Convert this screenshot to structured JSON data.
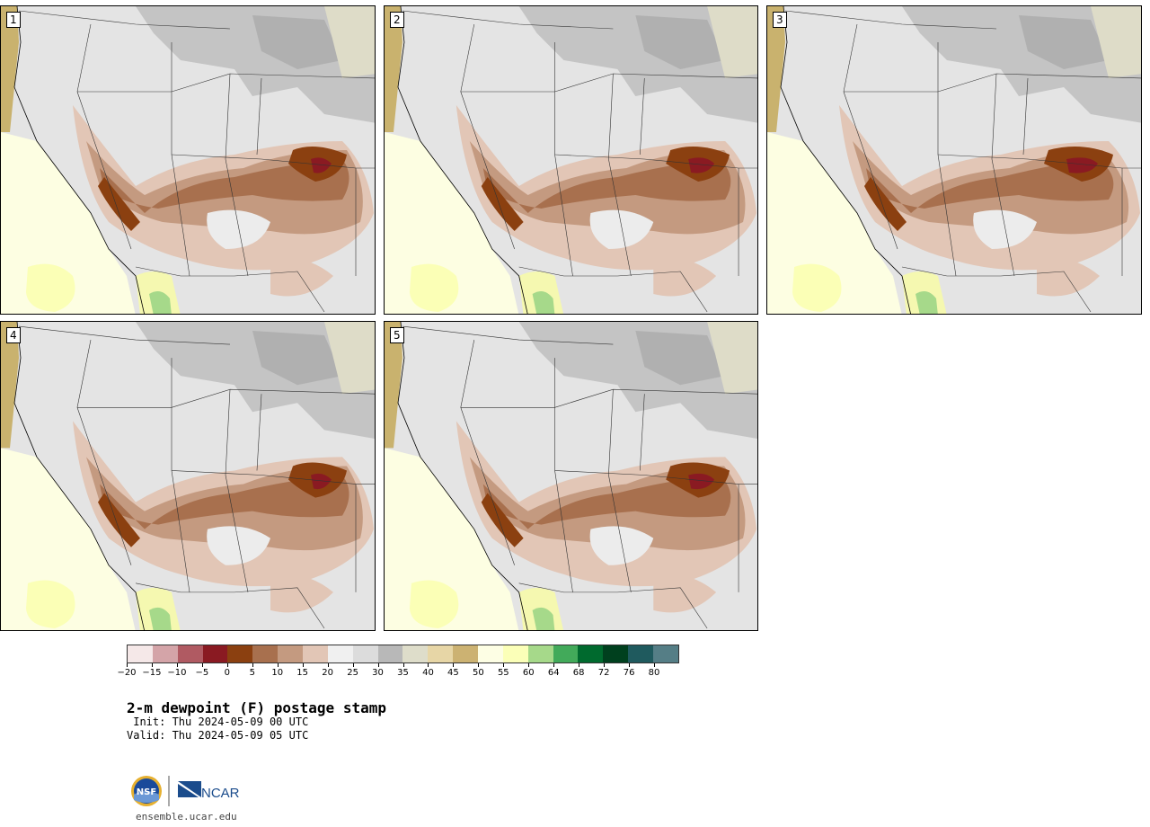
{
  "panels": [
    {
      "label": "1"
    },
    {
      "label": "2"
    },
    {
      "label": "3"
    },
    {
      "label": "4"
    },
    {
      "label": "5"
    }
  ],
  "colorbar": {
    "colors": [
      "#f5e8e8",
      "#d4a4a8",
      "#b05a62",
      "#8a1a22",
      "#8b4010",
      "#a8704e",
      "#c49a80",
      "#e2c6b6",
      "#f0f0f0",
      "#dcdcdc",
      "#b8b8b8",
      "#deddca",
      "#e7d6a6",
      "#ccb272",
      "#fdfee4",
      "#fbffb8",
      "#a6d98a",
      "#42aa5a",
      "#006a2e",
      "#00401e",
      "#1f5a5e",
      "#557e86"
    ],
    "tick_labels": [
      "−20",
      "−15",
      "−10",
      "−5",
      "0",
      "5",
      "10",
      "15",
      "20",
      "25",
      "30",
      "35",
      "40",
      "45",
      "50",
      "55",
      "60",
      "64",
      "68",
      "72",
      "76",
      "80"
    ]
  },
  "title": "2-m dewpoint (F) postage stamp",
  "init": " Init: Thu 2024-05-09 00 UTC",
  "valid": "Valid: Thu 2024-05-09 05 UTC",
  "footer_url": "ensemble.ucar.edu",
  "logos": {
    "nsf": "NSF",
    "ncar": "NCAR"
  }
}
